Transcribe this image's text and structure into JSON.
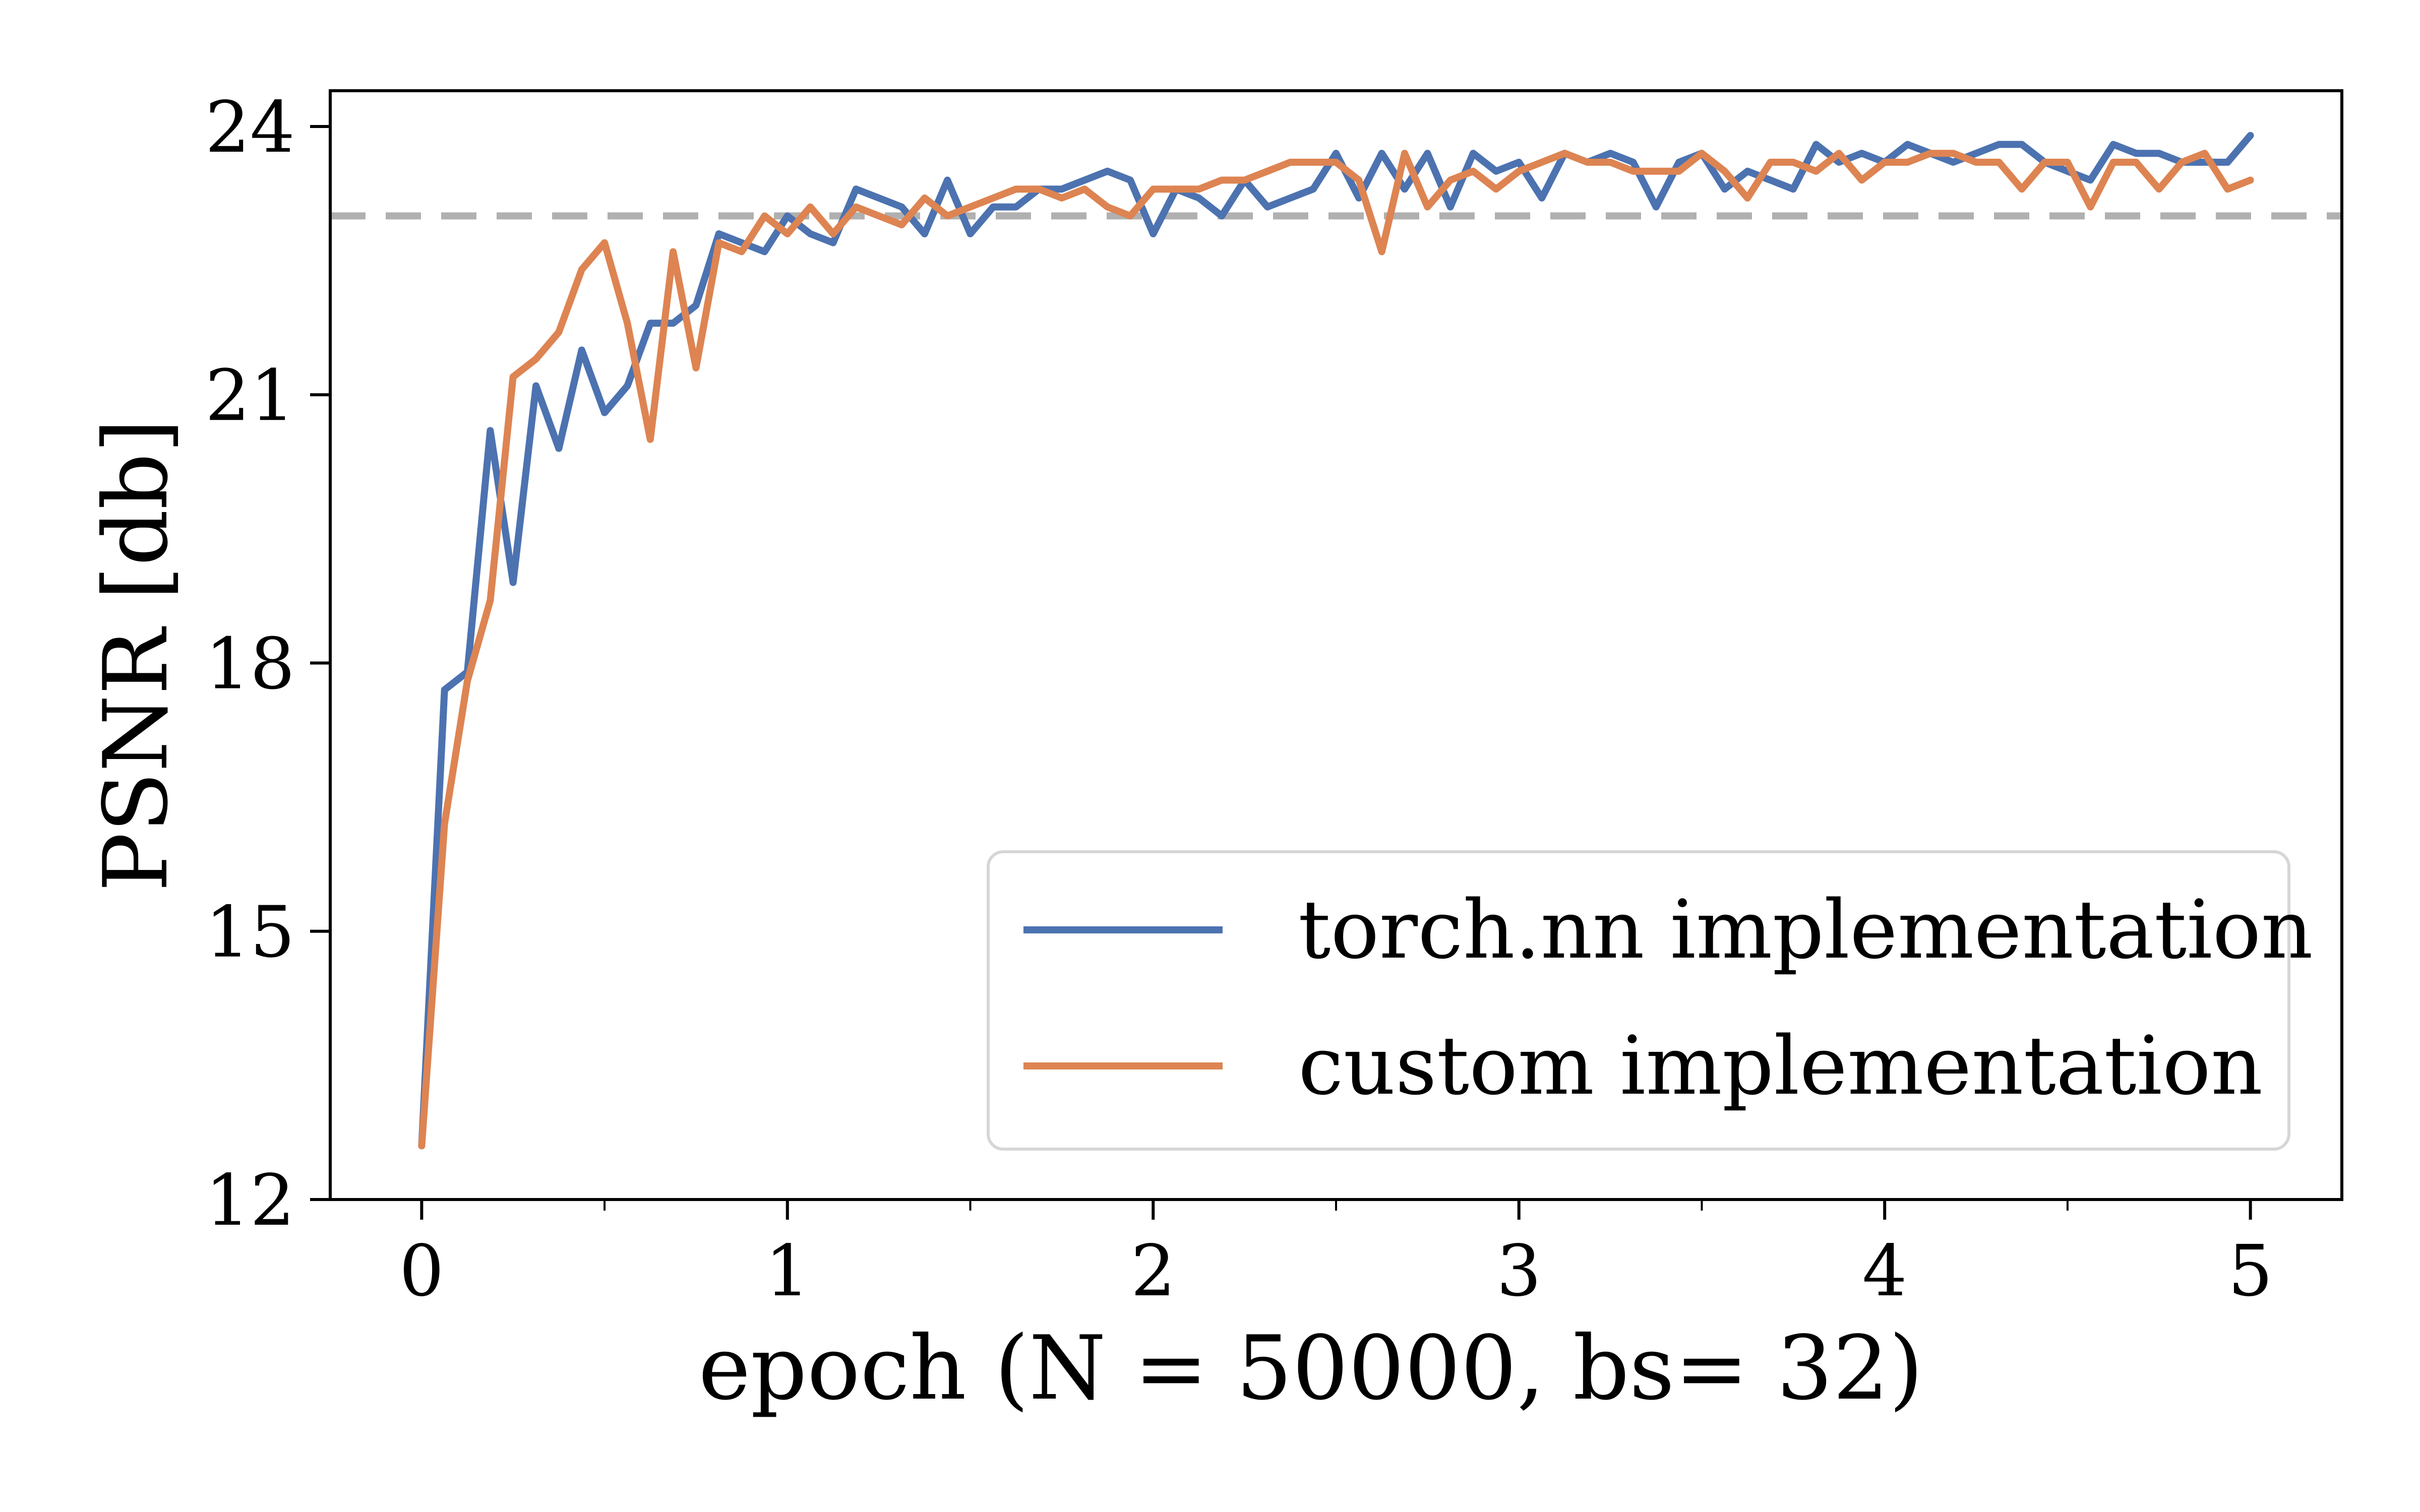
{
  "chart_data": {
    "type": "line",
    "xlabel": "epoch (N = 50000, bs= 32)",
    "ylabel": "PSNR [db]",
    "xlim": [
      -0.25,
      5.25
    ],
    "ylim": [
      12,
      24.4
    ],
    "xticks": [
      0,
      1,
      2,
      3,
      4,
      5
    ],
    "yticks": [
      12,
      15,
      18,
      21,
      24
    ],
    "grid": false,
    "legend_position": "lower-right",
    "reference_line": {
      "y": 23.0,
      "style": "dashed",
      "color": "#b0b0b0"
    },
    "x": [
      0.0,
      0.0625,
      0.125,
      0.1875,
      0.25,
      0.3125,
      0.375,
      0.4375,
      0.5,
      0.5625,
      0.625,
      0.6875,
      0.75,
      0.8125,
      0.875,
      0.9375,
      1.0,
      1.0625,
      1.125,
      1.1875,
      1.25,
      1.3125,
      1.375,
      1.4375,
      1.5,
      1.5625,
      1.625,
      1.6875,
      1.75,
      1.8125,
      1.875,
      1.9375,
      2.0,
      2.0625,
      2.125,
      2.1875,
      2.25,
      2.3125,
      2.375,
      2.4375,
      2.5,
      2.5625,
      2.625,
      2.6875,
      2.75,
      2.8125,
      2.875,
      2.9375,
      3.0,
      3.0625,
      3.125,
      3.1875,
      3.25,
      3.3125,
      3.375,
      3.4375,
      3.5,
      3.5625,
      3.625,
      3.6875,
      3.75,
      3.8125,
      3.875,
      3.9375,
      4.0,
      4.0625,
      4.125,
      4.1875,
      4.25,
      4.3125,
      4.375,
      4.4375,
      4.5,
      4.5625,
      4.625,
      4.6875,
      4.75,
      4.8125,
      4.875,
      4.9375,
      5.0
    ],
    "series": [
      {
        "name": "torch.nn implementation",
        "color": "#4c72b0",
        "values": [
          12.6,
          17.7,
          17.9,
          20.6,
          18.9,
          21.1,
          20.4,
          21.5,
          20.8,
          21.1,
          21.8,
          21.8,
          22.0,
          22.8,
          22.7,
          22.6,
          23.0,
          22.8,
          22.7,
          23.3,
          23.2,
          23.1,
          22.8,
          23.4,
          22.8,
          23.1,
          23.1,
          23.3,
          23.3,
          23.4,
          23.5,
          23.4,
          22.8,
          23.3,
          23.2,
          23.0,
          23.4,
          23.1,
          23.2,
          23.3,
          23.7,
          23.2,
          23.7,
          23.3,
          23.7,
          23.1,
          23.7,
          23.5,
          23.6,
          23.2,
          23.7,
          23.6,
          23.7,
          23.6,
          23.1,
          23.6,
          23.7,
          23.3,
          23.5,
          23.4,
          23.3,
          23.8,
          23.6,
          23.7,
          23.6,
          23.8,
          23.7,
          23.6,
          23.7,
          23.8,
          23.8,
          23.6,
          23.5,
          23.4,
          23.8,
          23.7,
          23.7,
          23.6,
          23.6,
          23.6,
          23.9
        ]
      },
      {
        "name": "custom implementation",
        "color": "#dd8452",
        "values": [
          12.6,
          16.2,
          17.8,
          18.7,
          21.2,
          21.4,
          21.7,
          22.4,
          22.7,
          21.8,
          20.5,
          22.6,
          21.3,
          22.7,
          22.6,
          23.0,
          22.8,
          23.1,
          22.8,
          23.1,
          23.0,
          22.9,
          23.2,
          23.0,
          23.1,
          23.2,
          23.3,
          23.3,
          23.2,
          23.3,
          23.1,
          23.0,
          23.3,
          23.3,
          23.3,
          23.4,
          23.4,
          23.5,
          23.6,
          23.6,
          23.6,
          23.4,
          22.6,
          23.7,
          23.1,
          23.4,
          23.5,
          23.3,
          23.5,
          23.6,
          23.7,
          23.6,
          23.6,
          23.5,
          23.5,
          23.5,
          23.7,
          23.5,
          23.2,
          23.6,
          23.6,
          23.5,
          23.7,
          23.4,
          23.6,
          23.6,
          23.7,
          23.7,
          23.6,
          23.6,
          23.3,
          23.6,
          23.6,
          23.1,
          23.6,
          23.6,
          23.3,
          23.6,
          23.7,
          23.3,
          23.4
        ]
      }
    ]
  }
}
